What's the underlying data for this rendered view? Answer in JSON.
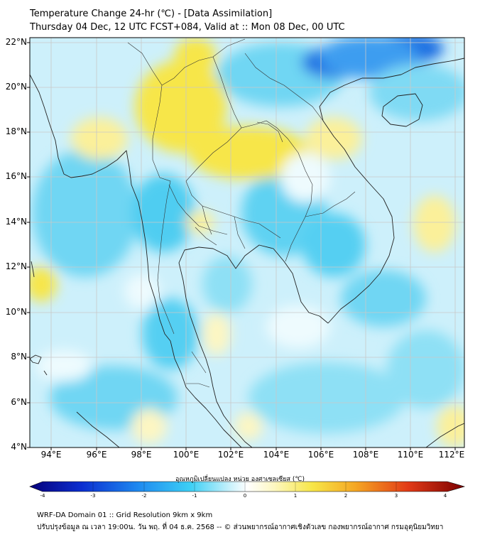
{
  "header": {
    "title": "Temperature Change 24-hr (℃) - [Data Assimilation]",
    "subtitle": "Thursday 04 Dec, 12 UTC FCST+084, Valid at :: Mon 08 Dec, 00 UTC"
  },
  "map": {
    "lat_labels": [
      "22°N",
      "20°N",
      "18°N",
      "16°N",
      "14°N",
      "12°N",
      "10°N",
      "8°N",
      "6°N",
      "4°N"
    ],
    "lon_labels": [
      "94°E",
      "96°E",
      "98°E",
      "100°E",
      "102°E",
      "104°E",
      "106°E",
      "108°E",
      "110°E",
      "112°E"
    ],
    "lat_range": [
      4,
      22.3
    ],
    "lon_range": [
      93.1,
      112.5
    ],
    "colors": {
      "cool_strong": "#1a3fd6",
      "cool": "#35c7f0",
      "cool_light": "#bfeefb",
      "neutral": "#ffffff",
      "warm_light": "#fbf7bf",
      "warm": "#f7e64a",
      "coast": "#222222",
      "grid": "#cccccc"
    }
  },
  "colorbar": {
    "title": "อุณหภูมิเปลี่ยนแปลง หน่วย องศาเซลเซียส (℃)",
    "ticks": [
      "-4",
      "-3",
      "-2",
      "-1",
      "0",
      "1",
      "2",
      "3",
      "4"
    ],
    "range": [
      -4,
      4
    ]
  },
  "footer": {
    "line1": "WRF-DA Domain 01 :: Grid Resolution 9km x 9km",
    "line2": "ปรับปรุงข้อมูล ณ เวลา 19:00น. วัน พฤ. ที่ 04 ธ.ค. 2568 -- © ส่วนพยากรณ์อากาศเชิงตัวเลข กองพยากรณ์อากาศ กรมอุตุนิยมวิทยา"
  }
}
